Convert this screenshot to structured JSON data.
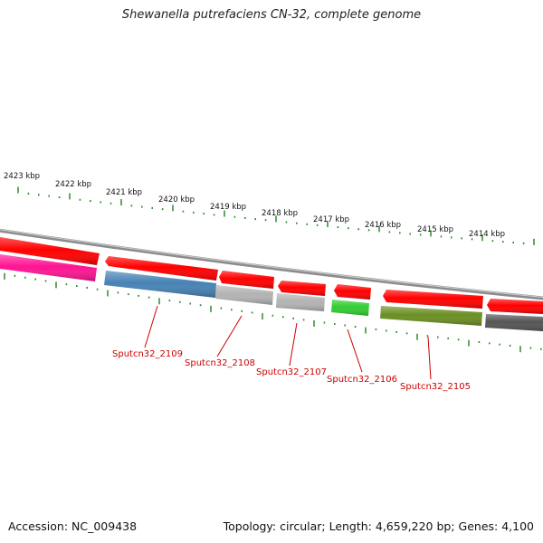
{
  "title": "Shewanella putrefaciens CN-32, complete genome",
  "footer": {
    "accession": "Accession: NC_009438",
    "summary": "Topology: circular; Length: 4,659,220 bp; Genes: 4,100"
  },
  "scale_labels": [
    "2423 kbp",
    "2422 kbp",
    "2421 kbp",
    "2420 kbp",
    "2419 kbp",
    "2418 kbp",
    "2417 kbp",
    "2416 kbp",
    "2415 kbp",
    "2414 kbp"
  ],
  "gene_labels": [
    "Sputcn32_2109",
    "Sputcn32_2108",
    "Sputcn32_2107",
    "Sputcn32_2106",
    "Sputcn32_2105"
  ],
  "colors": {
    "backbone": "#8c8c8c",
    "gene_forward": "#ff0000",
    "label": "#cc0000",
    "tick": "#2e8b2e"
  },
  "features": [
    {
      "kind": "cds",
      "color": "#ff0000"
    },
    {
      "kind": "cds",
      "color": "#ff0000"
    },
    {
      "kind": "cds",
      "color": "#ff0000"
    },
    {
      "kind": "cds",
      "color": "#ff0000"
    },
    {
      "kind": "cds",
      "color": "#ff0000"
    },
    {
      "kind": "cds",
      "color": "#ff0000"
    },
    {
      "kind": "cds",
      "color": "#ff0000"
    },
    {
      "kind": "cog",
      "color": "#ff1493"
    },
    {
      "kind": "cog",
      "color": "#4682b4"
    },
    {
      "kind": "cog",
      "color": "#b3b3b3"
    },
    {
      "kind": "cog",
      "color": "#b3b3b3"
    },
    {
      "kind": "cog",
      "color": "#32cd32"
    },
    {
      "kind": "cog",
      "color": "#6b8e23"
    },
    {
      "kind": "cog",
      "color": "#555555"
    }
  ]
}
